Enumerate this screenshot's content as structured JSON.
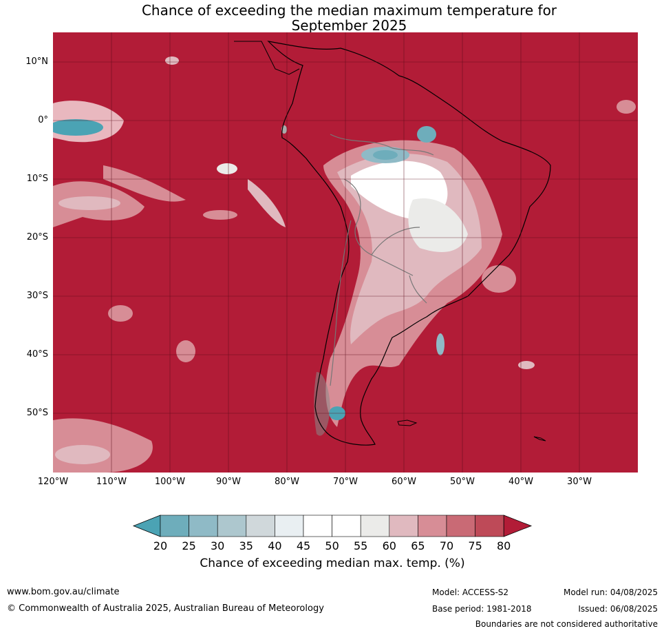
{
  "title_line1": "Chance of exceeding the median maximum temperature for",
  "title_line2": "September 2025",
  "lat_labels": [
    "10°N",
    "0°",
    "10°S",
    "20°S",
    "30°S",
    "40°S",
    "50°S"
  ],
  "lon_labels": [
    "120°W",
    "110°W",
    "100°W",
    "90°W",
    "80°W",
    "70°W",
    "60°W",
    "50°W",
    "40°W",
    "30°W"
  ],
  "colorbar": {
    "ticks": [
      "20",
      "25",
      "30",
      "35",
      "40",
      "45",
      "50",
      "55",
      "60",
      "65",
      "70",
      "75",
      "80"
    ],
    "colors": [
      "#4ba3b4",
      "#6eadbb",
      "#8fbac6",
      "#adc7ce",
      "#d0d8db",
      "#e9eff2",
      "#ffffff",
      "#ffffff",
      "#ebebe9",
      "#e0b9bf",
      "#d78d96",
      "#c96a75",
      "#be4a58",
      "#b21c37"
    ],
    "label": "Chance of exceeding median max. temp. (%)"
  },
  "footer": {
    "website": "www.bom.gov.au/climate",
    "copyright": "© Commonwealth of Australia 2025, Australian Bureau of Meteorology",
    "model": "Model: ACCESS-S2",
    "base_period": "Base period: 1981-2018",
    "model_run": "Model run: 04/08/2025",
    "issued": "Issued: 06/08/2025",
    "disclaimer": "Boundaries are not considered authoritative"
  }
}
